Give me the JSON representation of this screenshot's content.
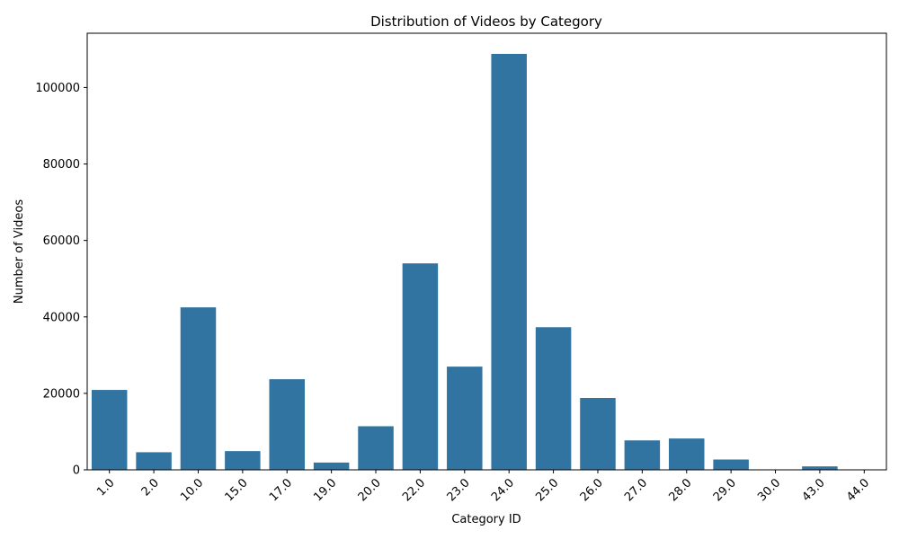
{
  "chart_data": {
    "type": "bar",
    "title": "Distribution of Videos by Category",
    "xlabel": "Category ID",
    "ylabel": "Number of Videos",
    "categories": [
      "1.0",
      "2.0",
      "10.0",
      "15.0",
      "17.0",
      "19.0",
      "20.0",
      "22.0",
      "23.0",
      "24.0",
      "25.0",
      "26.0",
      "27.0",
      "28.0",
      "29.0",
      "30.0",
      "43.0",
      "44.0"
    ],
    "values": [
      20900,
      4600,
      42500,
      4900,
      23700,
      1900,
      11400,
      54000,
      27000,
      108800,
      37300,
      18800,
      7700,
      8200,
      2700,
      0,
      900,
      0
    ],
    "yticks": [
      0,
      20000,
      40000,
      60000,
      80000,
      100000
    ],
    "ylim": [
      0,
      114200
    ],
    "bar_color": "#3274a1",
    "grid": false,
    "legend": "none"
  }
}
